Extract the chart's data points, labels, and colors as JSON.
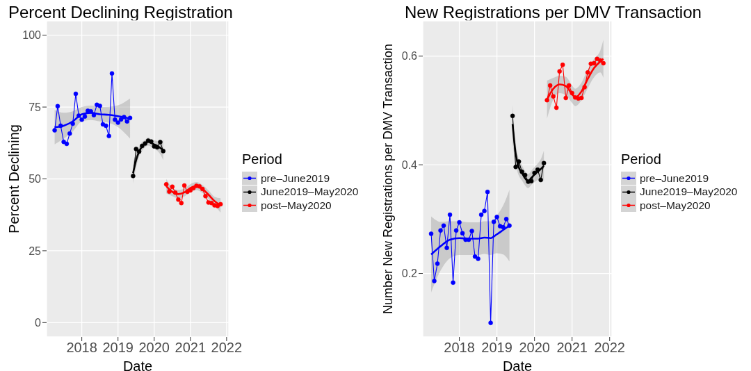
{
  "chart_data": [
    {
      "type": "line",
      "title": "Percent Declining Registration",
      "xlabel": "Date",
      "ylabel": "Percent Declining",
      "legend_title": "Period",
      "legend": "right",
      "grid": true,
      "marker": "circle",
      "xlim": [
        "2017-01-11",
        "2022-01-23"
      ],
      "xticks": [
        "2018",
        "2019",
        "2020",
        "2021",
        "2022"
      ],
      "ylim": [
        -5,
        105
      ],
      "yticks": [
        0,
        25,
        50,
        75,
        100
      ],
      "series": [
        {
          "name": "pre–June2019",
          "color": "#0000ff",
          "x": [
            "2017-04",
            "2017-05",
            "2017-06",
            "2017-07",
            "2017-08",
            "2017-09",
            "2017-10",
            "2017-11",
            "2017-12",
            "2018-01",
            "2018-02",
            "2018-03",
            "2018-04",
            "2018-05",
            "2018-06",
            "2018-07",
            "2018-08",
            "2018-09",
            "2018-10",
            "2018-11",
            "2018-12",
            "2019-01",
            "2019-02",
            "2019-03",
            "2019-04",
            "2019-05"
          ],
          "values": [
            66.9,
            75.3,
            68.5,
            62.9,
            62.2,
            65.8,
            69.2,
            79.6,
            72,
            70.6,
            71.7,
            73.7,
            73.5,
            72.2,
            75.8,
            75.4,
            69,
            68.5,
            64.9,
            86.7,
            70.6,
            69.6,
            70.7,
            71.5,
            70,
            71.2
          ]
        },
        {
          "name": "June2019–May2020",
          "color": "#000000",
          "x": [
            "2019-06",
            "2019-07",
            "2019-08",
            "2019-09",
            "2019-10",
            "2019-11",
            "2019-12",
            "2020-01",
            "2020-02",
            "2020-03",
            "2020-04"
          ],
          "values": [
            51,
            60.4,
            59.5,
            61.5,
            62.3,
            63.3,
            63,
            61.3,
            61,
            62.8,
            59.7
          ]
        },
        {
          "name": "post–May2020",
          "color": "#ff0000",
          "x": [
            "2020-05",
            "2020-06",
            "2020-07",
            "2020-08",
            "2020-09",
            "2020-10",
            "2020-11",
            "2020-12",
            "2021-01",
            "2021-02",
            "2021-03",
            "2021-04",
            "2021-05",
            "2021-06",
            "2021-07",
            "2021-08",
            "2021-09",
            "2021-10",
            "2021-11"
          ],
          "values": [
            48.1,
            45.6,
            47.3,
            45.2,
            42.8,
            41.6,
            47.7,
            45.5,
            46,
            46.8,
            47.6,
            47.4,
            46.5,
            44,
            41.8,
            41.6,
            40.8,
            40.6,
            41.2
          ]
        },
        {
          "color": "#0000ff",
          "marker": "none",
          "x": [
            "2017-04",
            "2017-07",
            "2017-10",
            "2018-01",
            "2018-04",
            "2018-07",
            "2018-10",
            "2019-01",
            "2019-05"
          ],
          "values": [
            68,
            68.5,
            70,
            72.5,
            73,
            72.5,
            72.3,
            71.8,
            71
          ],
          "lower": [
            62,
            64,
            66.5,
            70,
            70.5,
            70,
            69.5,
            68,
            64
          ],
          "upper": [
            74,
            73,
            73.5,
            75,
            75.5,
            75,
            75.1,
            75.6,
            78
          ]
        },
        {
          "color": "#000000",
          "marker": "none",
          "x": [
            "2019-06",
            "2019-07",
            "2019-08",
            "2019-09",
            "2019-10",
            "2019-11",
            "2019-12",
            "2020-01",
            "2020-02",
            "2020-03",
            "2020-04"
          ],
          "values": [
            52,
            56.5,
            59.5,
            61.3,
            62.3,
            63,
            62.5,
            62,
            61.5,
            60.8,
            60
          ],
          "lower": [
            48.5,
            54,
            57.8,
            59.8,
            61,
            61.6,
            61.2,
            60.6,
            59.8,
            58.6,
            56.5
          ],
          "upper": [
            55.5,
            59,
            61.2,
            62.8,
            63.6,
            64.4,
            63.8,
            63.4,
            63.2,
            63,
            63.5
          ]
        },
        {
          "color": "#ff0000",
          "marker": "none",
          "x": [
            "2020-05",
            "2020-07",
            "2020-09",
            "2020-11",
            "2021-01",
            "2021-03",
            "2021-05",
            "2021-07",
            "2021-09",
            "2021-11"
          ],
          "values": [
            47.5,
            45.5,
            44.7,
            45.3,
            46.8,
            47.5,
            46.5,
            44.5,
            42.3,
            40.8
          ],
          "lower": [
            45,
            44,
            43.2,
            43.9,
            45.4,
            46.1,
            45.1,
            43,
            40.8,
            38.3
          ],
          "upper": [
            50,
            47,
            46.2,
            46.7,
            48.2,
            48.9,
            47.9,
            46,
            43.8,
            43.3
          ]
        }
      ]
    },
    {
      "type": "line",
      "title": "New Registrations per DMV Transaction",
      "xlabel": "Date",
      "ylabel": "Number New Registrations per DMV Transaction",
      "legend_title": "Period",
      "legend": "right",
      "grid": true,
      "marker": "circle",
      "xlim": [
        "2017-01-11",
        "2022-01-23"
      ],
      "xticks": [
        "2018",
        "2019",
        "2020",
        "2021",
        "2022"
      ],
      "ylim": [
        0.083,
        0.665
      ],
      "yticks": [
        0.2,
        0.4,
        0.6
      ],
      "series": [
        {
          "name": "pre–June2019",
          "color": "#0000ff",
          "x": [
            "2017-04",
            "2017-05",
            "2017-06",
            "2017-07",
            "2017-08",
            "2017-09",
            "2017-10",
            "2017-11",
            "2017-12",
            "2018-01",
            "2018-02",
            "2018-03",
            "2018-04",
            "2018-05",
            "2018-06",
            "2018-07",
            "2018-08",
            "2018-09",
            "2018-10",
            "2018-11",
            "2018-12",
            "2019-01",
            "2019-02",
            "2019-03",
            "2019-04",
            "2019-05"
          ],
          "values": [
            0.273,
            0.186,
            0.218,
            0.279,
            0.288,
            0.247,
            0.308,
            0.183,
            0.279,
            0.294,
            0.274,
            0.262,
            0.262,
            0.278,
            0.231,
            0.227,
            0.308,
            0.315,
            0.35,
            0.109,
            0.295,
            0.304,
            0.287,
            0.285,
            0.3,
            0.288
          ]
        },
        {
          "name": "June2019–May2020",
          "color": "#000000",
          "x": [
            "2019-06",
            "2019-07",
            "2019-08",
            "2019-09",
            "2019-10",
            "2019-11",
            "2019-12",
            "2020-01",
            "2020-02",
            "2020-03",
            "2020-04"
          ],
          "values": [
            0.49,
            0.396,
            0.406,
            0.387,
            0.381,
            0.369,
            0.37,
            0.385,
            0.391,
            0.372,
            0.403
          ]
        },
        {
          "name": "post–May2020",
          "color": "#ff0000",
          "x": [
            "2020-05",
            "2020-06",
            "2020-07",
            "2020-08",
            "2020-09",
            "2020-10",
            "2020-11",
            "2020-12",
            "2021-01",
            "2021-02",
            "2021-03",
            "2021-04",
            "2021-05",
            "2021-06",
            "2021-07",
            "2021-08",
            "2021-09",
            "2021-10",
            "2021-11"
          ],
          "values": [
            0.519,
            0.546,
            0.526,
            0.505,
            0.572,
            0.584,
            0.523,
            0.546,
            0.532,
            0.524,
            0.522,
            0.523,
            0.543,
            0.57,
            0.586,
            0.587,
            0.595,
            0.592,
            0.587
          ]
        },
        {
          "color": "#0000ff",
          "marker": "none",
          "x": [
            "2017-04",
            "2017-07",
            "2017-10",
            "2018-01",
            "2018-04",
            "2018-07",
            "2018-09",
            "2018-11",
            "2019-01",
            "2019-03",
            "2019-05"
          ],
          "values": [
            0.235,
            0.25,
            0.262,
            0.265,
            0.264,
            0.264,
            0.266,
            0.265,
            0.272,
            0.28,
            0.288
          ],
          "lower": [
            0.165,
            0.205,
            0.228,
            0.234,
            0.234,
            0.234,
            0.236,
            0.234,
            0.237,
            0.235,
            0.222
          ],
          "upper": [
            0.305,
            0.295,
            0.296,
            0.296,
            0.294,
            0.294,
            0.296,
            0.296,
            0.307,
            0.325,
            0.354
          ]
        },
        {
          "color": "#000000",
          "marker": "none",
          "x": [
            "2019-06",
            "2019-07",
            "2019-08",
            "2019-09",
            "2019-10",
            "2019-11",
            "2019-12",
            "2020-01",
            "2020-02",
            "2020-03",
            "2020-04"
          ],
          "values": [
            0.475,
            0.42,
            0.395,
            0.385,
            0.375,
            0.37,
            0.376,
            0.382,
            0.387,
            0.392,
            0.398
          ],
          "lower": [
            0.44,
            0.4,
            0.38,
            0.371,
            0.362,
            0.357,
            0.363,
            0.368,
            0.372,
            0.374,
            0.37
          ],
          "upper": [
            0.51,
            0.44,
            0.41,
            0.399,
            0.388,
            0.383,
            0.389,
            0.396,
            0.402,
            0.41,
            0.426
          ]
        },
        {
          "color": "#ff0000",
          "marker": "none",
          "x": [
            "2020-05",
            "2020-07",
            "2020-09",
            "2020-11",
            "2021-01",
            "2021-02",
            "2021-04",
            "2021-06",
            "2021-08",
            "2021-10",
            "2021-11"
          ],
          "values": [
            0.52,
            0.54,
            0.548,
            0.545,
            0.53,
            0.524,
            0.535,
            0.558,
            0.578,
            0.59,
            0.595
          ],
          "lower": [
            0.485,
            0.52,
            0.532,
            0.528,
            0.514,
            0.508,
            0.519,
            0.541,
            0.561,
            0.57,
            0.56
          ],
          "upper": [
            0.555,
            0.56,
            0.564,
            0.562,
            0.546,
            0.54,
            0.551,
            0.575,
            0.595,
            0.61,
            0.63
          ]
        }
      ]
    }
  ]
}
